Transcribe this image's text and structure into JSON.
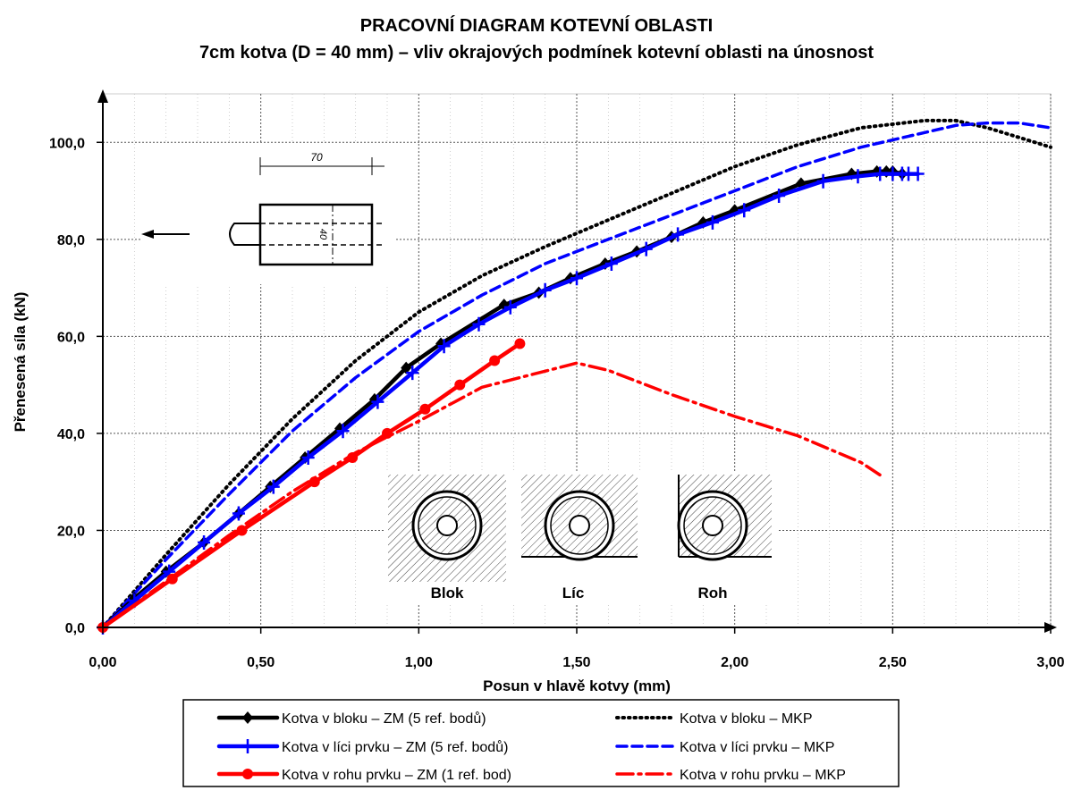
{
  "chart_data": {
    "type": "line",
    "title": "PRACOVNÍ DIAGRAM KOTEVNÍ OBLASTI",
    "subtitle": "7cm kotva (D = 40 mm) – vliv okrajových podmínek kotevní oblasti na únosnost",
    "xlabel": "Posun v hlavě kotvy (mm)",
    "ylabel": "Přenesená síla (kN)",
    "xlim": [
      0,
      3.0
    ],
    "ylim": [
      0,
      110
    ],
    "xticks": [
      0,
      0.5,
      1.0,
      1.5,
      2.0,
      2.5,
      3.0
    ],
    "xtick_labels": [
      "0,00",
      "0,50",
      "1,00",
      "1,50",
      "2,00",
      "2,50",
      "3,00"
    ],
    "yticks": [
      0,
      20,
      40,
      60,
      80,
      100
    ],
    "ytick_labels": [
      "0,0",
      "20,0",
      "40,0",
      "60,0",
      "80,0",
      "100,0"
    ],
    "grid": "dotted",
    "legend_position": "bottom",
    "series": [
      {
        "name": "Kotva v bloku – ZM (5 ref. bodů)",
        "color": "#000000",
        "style": "solid",
        "marker": "diamond",
        "x": [
          0,
          0.1,
          0.2,
          0.32,
          0.43,
          0.53,
          0.64,
          0.75,
          0.86,
          0.96,
          1.07,
          1.27,
          1.38,
          1.48,
          1.59,
          1.69,
          1.8,
          1.9,
          2.0,
          2.21,
          2.37,
          2.45,
          2.48,
          2.5,
          2.53
        ],
        "y": [
          0,
          6,
          11.5,
          17.5,
          23.5,
          29,
          35,
          41,
          47,
          53.5,
          58.5,
          66.5,
          69,
          72,
          75,
          77.5,
          80.5,
          83.5,
          86,
          91.5,
          93.5,
          94,
          94,
          94,
          93.5
        ]
      },
      {
        "name": "Kotva v líci prvku – ZM (5 ref. bodů)",
        "color": "#0000ff",
        "style": "solid",
        "marker": "plus",
        "x": [
          0,
          0.1,
          0.21,
          0.32,
          0.43,
          0.54,
          0.65,
          0.76,
          0.87,
          0.98,
          1.08,
          1.19,
          1.29,
          1.4,
          1.5,
          1.61,
          1.72,
          1.82,
          1.93,
          2.03,
          2.14,
          2.28,
          2.39,
          2.46,
          2.5,
          2.53,
          2.55,
          2.58
        ],
        "y": [
          0,
          5.5,
          11.5,
          17.5,
          23.5,
          29,
          35,
          40.5,
          46.5,
          52.5,
          58,
          62.5,
          66,
          69.5,
          72,
          75,
          78,
          81,
          83.5,
          86,
          89,
          92,
          93,
          93.5,
          93.5,
          93.5,
          93.5,
          93.5
        ]
      },
      {
        "name": "Kotva v rohu prvku – ZM (1 ref. bod)",
        "color": "#ff0000",
        "style": "solid",
        "marker": "circle",
        "x": [
          0,
          0.22,
          0.44,
          0.67,
          0.79,
          0.9,
          1.02,
          1.13,
          1.24,
          1.32
        ],
        "y": [
          0,
          10,
          20,
          30,
          35,
          40,
          45,
          50,
          55,
          58.5
        ]
      },
      {
        "name": "Kotva v bloku – MKP",
        "color": "#000000",
        "style": "dotted",
        "marker": "none",
        "x": [
          0,
          0.2,
          0.4,
          0.6,
          0.8,
          1.0,
          1.2,
          1.4,
          1.6,
          1.8,
          2.0,
          2.2,
          2.4,
          2.6,
          2.7,
          2.8,
          2.9,
          3.0
        ],
        "y": [
          0,
          15,
          29.5,
          43,
          55,
          65,
          72.5,
          78.5,
          84,
          89.5,
          95,
          99.5,
          103,
          104.5,
          104.5,
          103,
          101,
          99
        ]
      },
      {
        "name": "Kotva v líci prvku – MKP",
        "color": "#0000ff",
        "style": "dashed",
        "marker": "none",
        "x": [
          0,
          0.2,
          0.4,
          0.6,
          0.8,
          1.0,
          1.2,
          1.4,
          1.6,
          1.8,
          2.0,
          2.2,
          2.4,
          2.6,
          2.7,
          2.8,
          2.9,
          3.0
        ],
        "y": [
          0,
          14,
          27.5,
          40.5,
          51.5,
          61,
          68.5,
          75,
          80,
          85,
          90,
          95,
          99,
          102,
          103.5,
          104,
          104,
          103
        ]
      },
      {
        "name": "Kotva v rohu prvku – MKP",
        "color": "#ff0000",
        "style": "dashdot",
        "marker": "none",
        "x": [
          0,
          0.2,
          0.4,
          0.6,
          0.8,
          1.0,
          1.2,
          1.35,
          1.5,
          1.6,
          1.8,
          2.0,
          2.2,
          2.4,
          2.47
        ],
        "y": [
          0,
          9.5,
          19,
          28,
          36,
          42.5,
          49.5,
          52,
          54.5,
          53,
          48,
          43.5,
          39.5,
          34,
          31
        ]
      }
    ],
    "insets": {
      "anchor_dimension": "70",
      "anchor_diameter": "40",
      "cross_sections": [
        "Blok",
        "Líc",
        "Roh"
      ]
    }
  }
}
